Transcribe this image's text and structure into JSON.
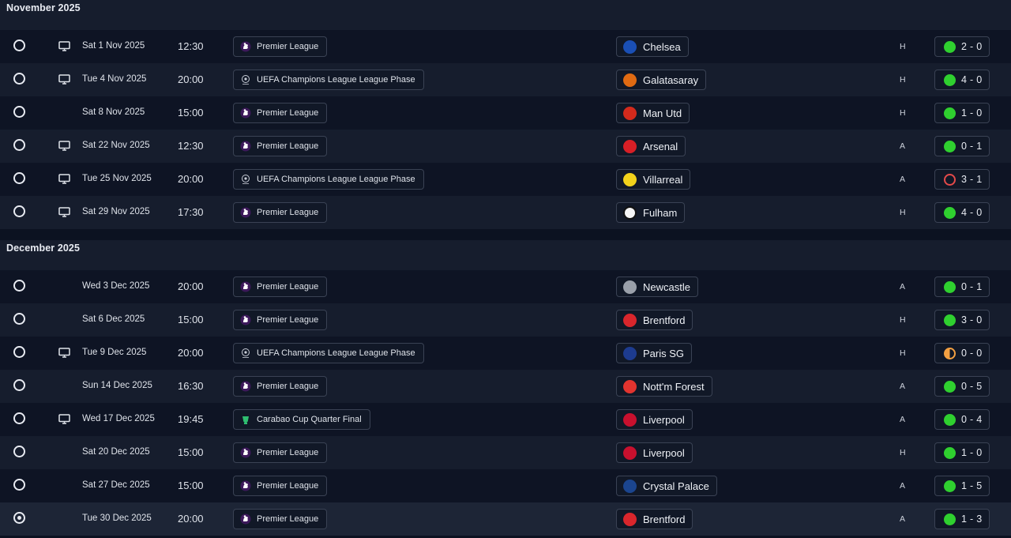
{
  "sections": [
    {
      "month": "November 2025",
      "fixtures": [
        {
          "tv": true,
          "date": "Sat 1 Nov 2025",
          "time": "12:30",
          "competition": "Premier League",
          "comp_type": "pl",
          "team": "Chelsea",
          "crest_color": "#1a4fb5",
          "venue": "H",
          "score": "2 - 0",
          "outcome": "win",
          "selected": false
        },
        {
          "tv": true,
          "date": "Tue 4 Nov 2025",
          "time": "20:00",
          "competition": "UEFA Champions League League Phase",
          "comp_type": "ucl",
          "team": "Galatasaray",
          "crest_color": "#e06a12",
          "venue": "H",
          "score": "4 - 0",
          "outcome": "win",
          "selected": false
        },
        {
          "tv": false,
          "date": "Sat 8 Nov 2025",
          "time": "15:00",
          "competition": "Premier League",
          "comp_type": "pl",
          "team": "Man Utd",
          "crest_color": "#d42a1c",
          "venue": "H",
          "score": "1 - 0",
          "outcome": "win",
          "selected": false
        },
        {
          "tv": true,
          "date": "Sat 22 Nov 2025",
          "time": "12:30",
          "competition": "Premier League",
          "comp_type": "pl",
          "team": "Arsenal",
          "crest_color": "#d81f26",
          "venue": "A",
          "score": "0 - 1",
          "outcome": "win",
          "selected": false
        },
        {
          "tv": true,
          "date": "Tue 25 Nov 2025",
          "time": "20:00",
          "competition": "UEFA Champions League League Phase",
          "comp_type": "ucl",
          "team": "Villarreal",
          "crest_color": "#f2d21b",
          "venue": "A",
          "score": "3 - 1",
          "outcome": "loss",
          "selected": false
        },
        {
          "tv": true,
          "date": "Sat 29 Nov 2025",
          "time": "17:30",
          "competition": "Premier League",
          "comp_type": "pl",
          "team": "Fulham",
          "crest_color": "#f4f4f4",
          "venue": "H",
          "score": "4 - 0",
          "outcome": "win",
          "selected": false
        }
      ]
    },
    {
      "month": "December 2025",
      "fixtures": [
        {
          "tv": false,
          "date": "Wed 3 Dec 2025",
          "time": "20:00",
          "competition": "Premier League",
          "comp_type": "pl",
          "team": "Newcastle",
          "crest_color": "#9aa0aa",
          "venue": "A",
          "score": "0 - 1",
          "outcome": "win",
          "selected": false
        },
        {
          "tv": false,
          "date": "Sat 6 Dec 2025",
          "time": "15:00",
          "competition": "Premier League",
          "comp_type": "pl",
          "team": "Brentford",
          "crest_color": "#d9262c",
          "venue": "H",
          "score": "3 - 0",
          "outcome": "win",
          "selected": false
        },
        {
          "tv": true,
          "date": "Tue 9 Dec 2025",
          "time": "20:00",
          "competition": "UEFA Champions League League Phase",
          "comp_type": "ucl",
          "team": "Paris SG",
          "crest_color": "#1d3b8f",
          "venue": "H",
          "score": "0 - 0",
          "outcome": "draw",
          "selected": false
        },
        {
          "tv": false,
          "date": "Sun 14 Dec 2025",
          "time": "16:30",
          "competition": "Premier League",
          "comp_type": "pl",
          "team": "Nott'm Forest",
          "crest_color": "#e3342f",
          "venue": "A",
          "score": "0 - 5",
          "outcome": "win",
          "selected": false
        },
        {
          "tv": true,
          "date": "Wed 17 Dec 2025",
          "time": "19:45",
          "competition": "Carabao Cup Quarter Final",
          "comp_type": "cup",
          "team": "Liverpool",
          "crest_color": "#c8102e",
          "venue": "A",
          "score": "0 - 4",
          "outcome": "win",
          "selected": false
        },
        {
          "tv": false,
          "date": "Sat 20 Dec 2025",
          "time": "15:00",
          "competition": "Premier League",
          "comp_type": "pl",
          "team": "Liverpool",
          "crest_color": "#c8102e",
          "venue": "H",
          "score": "1 - 0",
          "outcome": "win",
          "selected": false
        },
        {
          "tv": false,
          "date": "Sat 27 Dec 2025",
          "time": "15:00",
          "competition": "Premier League",
          "comp_type": "pl",
          "team": "Crystal Palace",
          "crest_color": "#1b458f",
          "venue": "A",
          "score": "1 - 5",
          "outcome": "win",
          "selected": false
        },
        {
          "tv": false,
          "date": "Tue 30 Dec 2025",
          "time": "20:00",
          "competition": "Premier League",
          "comp_type": "pl",
          "team": "Brentford",
          "crest_color": "#d9262c",
          "venue": "A",
          "score": "1 - 3",
          "outcome": "win",
          "selected": true
        }
      ]
    }
  ],
  "icons": {
    "tv": "tv-icon",
    "pl": "premier-league-icon",
    "ucl": "champions-league-icon",
    "cup": "carabao-cup-icon"
  }
}
